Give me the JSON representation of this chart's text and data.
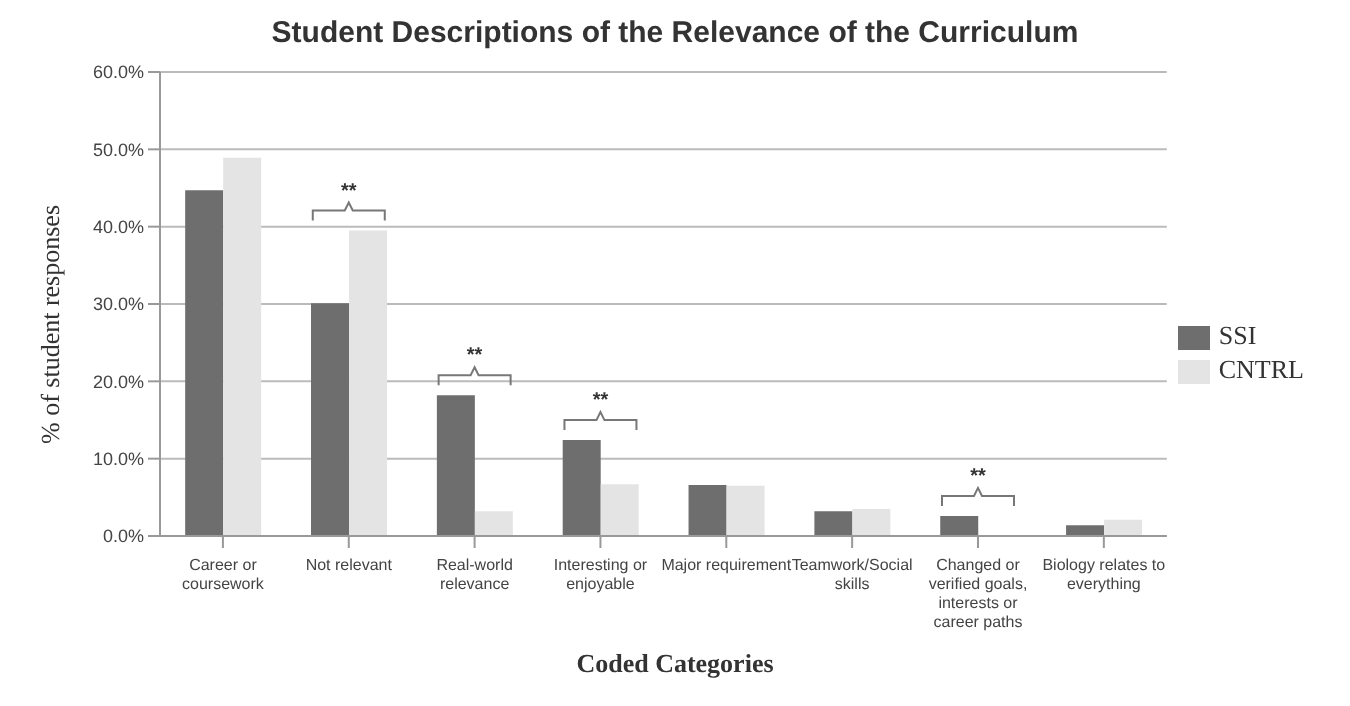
{
  "chart_data": {
    "type": "bar",
    "title": "Student Descriptions of the Relevance of the Curriculum",
    "xlabel": "Coded Categories",
    "ylabel": "% of student responses",
    "categories": [
      "Career or coursework",
      "Not relevant",
      "Real-world relevance",
      "Interesting or enjoyable",
      "Major requirement",
      "Teamwork/Social skills",
      "Changed or verified goals, interests or career paths",
      "Biology relates to everything"
    ],
    "series": [
      {
        "name": "SSI",
        "color": "#6e6e6e",
        "values": [
          44.7,
          30.1,
          18.2,
          12.4,
          6.6,
          3.2,
          2.6,
          1.4
        ]
      },
      {
        "name": "CNTRL",
        "color": "#e4e4e4",
        "values": [
          48.9,
          39.5,
          3.2,
          6.7,
          6.5,
          3.5,
          null,
          2.1
        ]
      }
    ],
    "ylim": [
      0,
      60
    ],
    "yticks": [
      {
        "value": 0,
        "label": "0.0%"
      },
      {
        "value": 10,
        "label": "10.0%"
      },
      {
        "value": 20,
        "label": "20.0%"
      },
      {
        "value": 30,
        "label": "30.0%"
      },
      {
        "value": 40,
        "label": "40.0%"
      },
      {
        "value": 50,
        "label": "50.0%"
      },
      {
        "value": 60,
        "label": "60.0%"
      }
    ],
    "grid": "y",
    "legend": "right",
    "annotations": [
      {
        "text": "**",
        "x": "Not relevant",
        "y": 39.5
      },
      {
        "text": "**",
        "x": "Real-world relevance",
        "y": 18.2
      },
      {
        "text": "**",
        "x": "Interesting or enjoyable",
        "y": 12.4
      },
      {
        "text": "**",
        "x": "Changed or verified goals, interests or career paths",
        "y": 2.6
      }
    ]
  }
}
